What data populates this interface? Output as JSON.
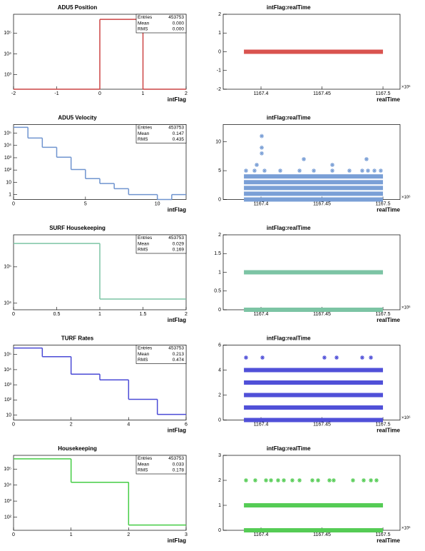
{
  "chart_data": [
    {
      "type": "histogram",
      "title": "ADU5 Position",
      "xlabel": "intFlag",
      "color": "#cc4444",
      "log_y": true,
      "bins": [
        -2,
        -1,
        0,
        1,
        2
      ],
      "values": [
        0,
        0,
        453753,
        0
      ],
      "xlim": [
        -2,
        2
      ],
      "xticks": [
        -2,
        -1,
        0,
        1,
        2
      ],
      "ylim": [
        200,
        800000
      ],
      "yticks": [
        {
          "value": 1000,
          "label": "10³"
        },
        {
          "value": 10000,
          "label": "10⁴"
        },
        {
          "value": 100000,
          "label": "10⁵"
        }
      ],
      "stats": [
        {
          "label": "Entries",
          "value": "453753"
        },
        {
          "label": "Mean",
          "value": "0.000"
        },
        {
          "label": "RMS",
          "value": "0.000"
        }
      ]
    },
    {
      "type": "scatter",
      "title": "intFlag:realTime",
      "xlabel": "realTime",
      "x_exponent": "×10⁶",
      "color": "#d9534f",
      "xlim": [
        1167.369,
        1167.514
      ],
      "xticks": [
        1167.4,
        1167.45,
        1167.5
      ],
      "ylim": [
        -2,
        2
      ],
      "yticks": [
        -2,
        -1,
        0,
        1,
        2
      ],
      "bands": [
        {
          "y": 0,
          "x": [
            1167.386,
            1167.5
          ]
        }
      ],
      "points": {
        "x": [],
        "y": []
      }
    },
    {
      "type": "histogram",
      "title": "ADU5 Velocity",
      "xlabel": "intFlag",
      "color": "#6f94cf",
      "log_y": true,
      "bins": [
        0,
        1,
        2,
        3,
        4,
        5,
        6,
        7,
        8,
        9,
        10,
        11,
        12
      ],
      "values": [
        300000,
        40000,
        7000,
        1100,
        110,
        20,
        8,
        3,
        1,
        1,
        0,
        1
      ],
      "xlim": [
        0,
        12
      ],
      "xticks": [
        0,
        5,
        10
      ],
      "ylim": [
        0.4,
        500000
      ],
      "yticks": [
        1,
        10,
        {
          "value": 100,
          "label": "10²"
        },
        {
          "value": 1000,
          "label": "10³"
        },
        {
          "value": 10000,
          "label": "10⁴"
        },
        {
          "value": 100000,
          "label": "10⁵"
        }
      ],
      "stats": [
        {
          "label": "Entries",
          "value": "453753"
        },
        {
          "label": "Mean",
          "value": "0.147"
        },
        {
          "label": "RMS",
          "value": "0.435"
        }
      ]
    },
    {
      "type": "scatter",
      "title": "intFlag:realTime",
      "xlabel": "realTime",
      "x_exponent": "×10⁶",
      "color": "#7a9fd6",
      "xlim": [
        1167.369,
        1167.514
      ],
      "xticks": [
        1167.4,
        1167.45,
        1167.5
      ],
      "ylim": [
        0,
        13
      ],
      "yticks": [
        0,
        5,
        10
      ],
      "bands": [
        {
          "y": 0,
          "x": [
            1167.386,
            1167.5
          ]
        },
        {
          "y": 1,
          "x": [
            1167.386,
            1167.5
          ]
        },
        {
          "y": 2,
          "x": [
            1167.386,
            1167.5
          ]
        },
        {
          "y": 3,
          "x": [
            1167.386,
            1167.5
          ]
        },
        {
          "y": 4,
          "x": [
            1167.386,
            1167.5
          ]
        }
      ],
      "points": {
        "x": [
          1167.3877,
          1167.3947,
          1167.4029,
          1167.4158,
          1167.4316,
          1167.4433,
          1167.4585,
          1167.4725,
          1167.483,
          1167.4877,
          1167.493,
          1167.4982,
          1167.3965,
          1167.4585,
          1167.4351,
          1167.4865,
          1167.4006,
          1167.4006,
          1167.4006
        ],
        "y": [
          5,
          5,
          5,
          5,
          5,
          5,
          5,
          5,
          5,
          5,
          5,
          5,
          6,
          6,
          7,
          7,
          8,
          9,
          11
        ]
      }
    },
    {
      "type": "histogram",
      "title": "SURF Housekeeping",
      "xlabel": "intFlag",
      "color": "#7cc4a4",
      "log_y": true,
      "bins": [
        0,
        1,
        2
      ],
      "values": [
        440000,
        13000
      ],
      "xlim": [
        0,
        2
      ],
      "xticks": [
        0,
        0.5,
        1,
        1.5,
        2
      ],
      "ylim": [
        6600,
        760000
      ],
      "yticks": [
        {
          "value": 10000,
          "label": "10⁴"
        },
        {
          "value": 100000,
          "label": "10⁵"
        }
      ],
      "stats": [
        {
          "label": "Entries",
          "value": "453753"
        },
        {
          "label": "Mean",
          "value": "0.029"
        },
        {
          "label": "RMS",
          "value": "0.169"
        }
      ]
    },
    {
      "type": "scatter",
      "title": "intFlag:realTime",
      "xlabel": "realTime",
      "x_exponent": "×10⁶",
      "color": "#7cc4a4",
      "xlim": [
        1167.369,
        1167.514
      ],
      "xticks": [
        1167.4,
        1167.45,
        1167.5
      ],
      "ylim": [
        0,
        2
      ],
      "yticks": [
        0,
        0.5,
        1,
        1.5,
        2
      ],
      "bands": [
        {
          "y": 0,
          "x": [
            1167.386,
            1167.5
          ]
        },
        {
          "y": 1,
          "x": [
            1167.386,
            1167.5
          ]
        }
      ],
      "points": {
        "x": [],
        "y": []
      }
    },
    {
      "type": "histogram",
      "title": "TURF Rates",
      "xlabel": "intFlag",
      "color": "#4a4ad6",
      "log_y": true,
      "bins": [
        0,
        1,
        2,
        3,
        4,
        5,
        6
      ],
      "values": [
        270000,
        72000,
        5000,
        2100,
        110,
        11
      ],
      "xlim": [
        0,
        6
      ],
      "xticks": [
        0,
        2,
        4,
        6
      ],
      "ylim": [
        4.7,
        420000
      ],
      "yticks": [
        10,
        {
          "value": 100,
          "label": "10²"
        },
        {
          "value": 1000,
          "label": "10³"
        },
        {
          "value": 10000,
          "label": "10⁴"
        },
        {
          "value": 100000,
          "label": "10⁵"
        }
      ],
      "stats": [
        {
          "label": "Entries",
          "value": "453753"
        },
        {
          "label": "Mean",
          "value": "0.213"
        },
        {
          "label": "RMS",
          "value": "0.474"
        }
      ]
    },
    {
      "type": "scatter",
      "title": "intFlag:realTime",
      "xlabel": "realTime",
      "x_exponent": "×10⁶",
      "color": "#5050d8",
      "xlim": [
        1167.369,
        1167.514
      ],
      "xticks": [
        1167.4,
        1167.45,
        1167.5
      ],
      "ylim": [
        0,
        6
      ],
      "yticks": [
        0,
        2,
        4,
        6
      ],
      "bands": [
        {
          "y": 0,
          "x": [
            1167.386,
            1167.5
          ]
        },
        {
          "y": 1,
          "x": [
            1167.386,
            1167.5
          ]
        },
        {
          "y": 2,
          "x": [
            1167.386,
            1167.5
          ]
        },
        {
          "y": 3,
          "x": [
            1167.386,
            1167.5
          ]
        },
        {
          "y": 4,
          "x": [
            1167.386,
            1167.5
          ]
        }
      ],
      "points": {
        "x": [
          1167.3877,
          1167.4012,
          1167.452,
          1167.462,
          1167.483,
          1167.4901
        ],
        "y": [
          5,
          5,
          5,
          5,
          5,
          5
        ]
      }
    },
    {
      "type": "histogram",
      "title": "Housekeeping",
      "xlabel": "intFlag",
      "color": "#44cc44",
      "log_y": true,
      "bins": [
        0,
        1,
        2,
        3
      ],
      "values": [
        435000,
        15000,
        32
      ],
      "xlim": [
        0,
        3
      ],
      "xticks": [
        0,
        1,
        2,
        3
      ],
      "ylim": [
        15,
        720000
      ],
      "yticks": [
        {
          "value": 100,
          "label": "10²"
        },
        {
          "value": 1000,
          "label": "10³"
        },
        {
          "value": 10000,
          "label": "10⁴"
        },
        {
          "value": 100000,
          "label": "10⁵"
        }
      ],
      "stats": [
        {
          "label": "Entries",
          "value": "453753"
        },
        {
          "label": "Mean",
          "value": "0.033"
        },
        {
          "label": "RMS",
          "value": "0.178"
        }
      ]
    },
    {
      "type": "scatter",
      "title": "intFlag:realTime",
      "xlabel": "realTime",
      "x_exponent": "×10⁶",
      "color": "#55cc55",
      "xlim": [
        1167.369,
        1167.514
      ],
      "xticks": [
        1167.4,
        1167.45,
        1167.5
      ],
      "ylim": [
        0,
        3
      ],
      "yticks": [
        0,
        1,
        2,
        3
      ],
      "bands": [
        {
          "y": 0,
          "x": [
            1167.386,
            1167.5
          ]
        },
        {
          "y": 1,
          "x": [
            1167.386,
            1167.5
          ]
        }
      ],
      "points": {
        "x": [
          1167.3877,
          1167.3953,
          1167.4041,
          1167.4082,
          1167.414,
          1167.4187,
          1167.4257,
          1167.4316,
          1167.4421,
          1167.4468,
          1167.4561,
          1167.4596,
          1167.4754,
          1167.4842,
          1167.4901,
          1167.4947
        ],
        "y": [
          2,
          2,
          2,
          2,
          2,
          2,
          2,
          2,
          2,
          2,
          2,
          2,
          2,
          2,
          2,
          2
        ]
      }
    }
  ]
}
